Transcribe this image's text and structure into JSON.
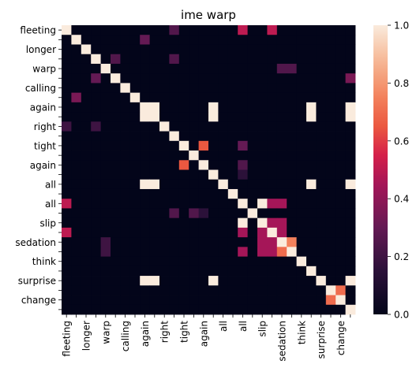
{
  "chart_data": {
    "type": "heatmap",
    "title": "ime warp",
    "xlabel": "",
    "ylabel": "",
    "row_labels": [
      "fleeting",
      "",
      "longer",
      "",
      "warp",
      "",
      "calling",
      "",
      "again",
      "",
      "right",
      "",
      "tight",
      "",
      "again",
      "",
      "all",
      "",
      "all",
      "",
      "slip",
      "",
      "sedation",
      "",
      "think",
      "",
      "surprise",
      "",
      "change",
      ""
    ],
    "col_labels": [
      "fleeting",
      "",
      "longer",
      "",
      "warp",
      "",
      "calling",
      "",
      "again",
      "",
      "right",
      "",
      "tight",
      "",
      "again",
      "",
      "all",
      "",
      "all",
      "",
      "slip",
      "",
      "sedation",
      "",
      "think",
      "",
      "surprise",
      "",
      "change",
      ""
    ],
    "values": [
      [
        1,
        0,
        0,
        0,
        0,
        0,
        0,
        0,
        0,
        0,
        0,
        0.25,
        0,
        0,
        0,
        0,
        0,
        0,
        0.5,
        0,
        0,
        0.5,
        0,
        0,
        0,
        0,
        0,
        0,
        0,
        0
      ],
      [
        0,
        1,
        0,
        0,
        0,
        0,
        0,
        0,
        0.3,
        0,
        0,
        0,
        0,
        0,
        0,
        0,
        0,
        0,
        0,
        0,
        0,
        0,
        0,
        0,
        0,
        0,
        0,
        0,
        0,
        0
      ],
      [
        0,
        0,
        1,
        0,
        0,
        0,
        0,
        0,
        0,
        0,
        0,
        0,
        0,
        0,
        0,
        0,
        0,
        0,
        0,
        0,
        0,
        0,
        0,
        0,
        0,
        0,
        0,
        0,
        0,
        0
      ],
      [
        0,
        0,
        0,
        1,
        0,
        0.25,
        0,
        0,
        0,
        0,
        0,
        0.25,
        0,
        0,
        0,
        0,
        0,
        0,
        0,
        0,
        0,
        0,
        0,
        0,
        0,
        0,
        0,
        0,
        0,
        0
      ],
      [
        0,
        0,
        0,
        0,
        1,
        0,
        0,
        0,
        0,
        0,
        0,
        0,
        0,
        0,
        0,
        0,
        0,
        0,
        0,
        0,
        0,
        0,
        0.25,
        0.25,
        0,
        0,
        0,
        0,
        0,
        0
      ],
      [
        0,
        0,
        0,
        0.3,
        0,
        1,
        0,
        0,
        0,
        0,
        0,
        0,
        0,
        0,
        0,
        0,
        0,
        0,
        0,
        0,
        0,
        0,
        0,
        0,
        0,
        0,
        0,
        0,
        0,
        0.35
      ],
      [
        0,
        0,
        0,
        0,
        0,
        0,
        1,
        0,
        0,
        0,
        0,
        0,
        0,
        0,
        0,
        0,
        0,
        0,
        0,
        0,
        0,
        0,
        0,
        0,
        0,
        0,
        0,
        0,
        0,
        0
      ],
      [
        0,
        0.35,
        0,
        0,
        0,
        0,
        0,
        1,
        0,
        0,
        0,
        0,
        0,
        0,
        0,
        0,
        0,
        0,
        0,
        0,
        0,
        0,
        0,
        0,
        0,
        0,
        0,
        0,
        0,
        0
      ],
      [
        0,
        0,
        0,
        0,
        0,
        0,
        0,
        0,
        1,
        1,
        0,
        0,
        0,
        0,
        0,
        1,
        0,
        0,
        0,
        0,
        0,
        0,
        0,
        0,
        0,
        1,
        0,
        0,
        0,
        1
      ],
      [
        0,
        0,
        0,
        0,
        0,
        0,
        0,
        0,
        1,
        1,
        0,
        0,
        0,
        0,
        0,
        1,
        0,
        0,
        0,
        0,
        0,
        0,
        0,
        0,
        0,
        1,
        0,
        0,
        0,
        1
      ],
      [
        0.2,
        0,
        0,
        0.2,
        0,
        0,
        0,
        0,
        0,
        0,
        1,
        0,
        0,
        0,
        0,
        0,
        0,
        0,
        0,
        0,
        0,
        0,
        0,
        0,
        0,
        0,
        0,
        0,
        0,
        0
      ],
      [
        0,
        0,
        0,
        0,
        0,
        0,
        0,
        0,
        0,
        0,
        0,
        1,
        0,
        0,
        0,
        0,
        0,
        0,
        0,
        0,
        0,
        0,
        0,
        0,
        0,
        0,
        0,
        0,
        0,
        0
      ],
      [
        0,
        0,
        0,
        0,
        0,
        0,
        0,
        0,
        0,
        0,
        0,
        0,
        1,
        0,
        0.65,
        0,
        0,
        0,
        0.3,
        0,
        0,
        0,
        0,
        0,
        0,
        0,
        0,
        0,
        0,
        0
      ],
      [
        0,
        0,
        0,
        0,
        0,
        0,
        0,
        0,
        0,
        0,
        0,
        0,
        0,
        1,
        0,
        0,
        0,
        0,
        0,
        0,
        0,
        0,
        0,
        0,
        0,
        0,
        0,
        0,
        0,
        0
      ],
      [
        0,
        0,
        0,
        0,
        0,
        0,
        0,
        0,
        0,
        0,
        0,
        0,
        0.65,
        0,
        1,
        0,
        0,
        0,
        0.25,
        0,
        0,
        0,
        0,
        0,
        0,
        0,
        0,
        0,
        0,
        0
      ],
      [
        0,
        0,
        0,
        0,
        0,
        0,
        0,
        0,
        0,
        0,
        0,
        0,
        0,
        0,
        0,
        1,
        0,
        0,
        0.15,
        0,
        0,
        0,
        0,
        0,
        0,
        0,
        0,
        0,
        0,
        0
      ],
      [
        0,
        0,
        0,
        0,
        0,
        0,
        0,
        0,
        1,
        1,
        0,
        0,
        0,
        0,
        0,
        0,
        1,
        0,
        0,
        0,
        0,
        0,
        0,
        0,
        0,
        1,
        0,
        0,
        0,
        1
      ],
      [
        0,
        0,
        0,
        0,
        0,
        0,
        0,
        0,
        0,
        0,
        0,
        0,
        0,
        0,
        0,
        0,
        0,
        1,
        0,
        0,
        0,
        0,
        0,
        0,
        0,
        0,
        0,
        0,
        0,
        0
      ],
      [
        0.5,
        0,
        0,
        0,
        0,
        0,
        0,
        0,
        0,
        0,
        0,
        0,
        0,
        0,
        0,
        0,
        0,
        0,
        1,
        0,
        1,
        0.45,
        0.45,
        0,
        0,
        0,
        0,
        0,
        0,
        0
      ],
      [
        0,
        0,
        0,
        0,
        0,
        0,
        0,
        0,
        0,
        0,
        0,
        0.25,
        0,
        0.25,
        0.15,
        0,
        0,
        0,
        0,
        1,
        0,
        0,
        0,
        0,
        0,
        0,
        0,
        0,
        0,
        0
      ],
      [
        0,
        0,
        0,
        0,
        0,
        0,
        0,
        0,
        0,
        0,
        0,
        0,
        0,
        0,
        0,
        0,
        0,
        0,
        1,
        0,
        1,
        0.45,
        0.45,
        0,
        0,
        0,
        0,
        0,
        0,
        0
      ],
      [
        0.5,
        0,
        0,
        0,
        0,
        0,
        0,
        0,
        0,
        0,
        0,
        0,
        0,
        0,
        0,
        0,
        0,
        0,
        0.45,
        0,
        0.45,
        1,
        0.45,
        0,
        0,
        0,
        0,
        0,
        0,
        0
      ],
      [
        0,
        0,
        0,
        0,
        0.2,
        0,
        0,
        0,
        0,
        0,
        0,
        0,
        0,
        0,
        0,
        0,
        0,
        0,
        0,
        0,
        0.45,
        0.45,
        1,
        0.75,
        0,
        0,
        0,
        0,
        0,
        0
      ],
      [
        0,
        0,
        0,
        0,
        0.2,
        0,
        0,
        0,
        0,
        0,
        0,
        0,
        0,
        0,
        0,
        0,
        0,
        0,
        0.45,
        0,
        0.45,
        0.45,
        0.7,
        1,
        0,
        0,
        0,
        0,
        0,
        0
      ],
      [
        0,
        0,
        0,
        0,
        0,
        0,
        0,
        0,
        0,
        0,
        0,
        0,
        0,
        0,
        0,
        0,
        0,
        0,
        0,
        0,
        0,
        0,
        0,
        0,
        1,
        0,
        0,
        0,
        0,
        0
      ],
      [
        0,
        0,
        0,
        0,
        0,
        0,
        0,
        0,
        0,
        0,
        0,
        0,
        0,
        0,
        0,
        0,
        0,
        0,
        0,
        0,
        0,
        0,
        0,
        0,
        0,
        1,
        0,
        0,
        0,
        0
      ],
      [
        0,
        0,
        0,
        0,
        0,
        0,
        0,
        0,
        1,
        1,
        0,
        0,
        0,
        0,
        0,
        1,
        0,
        0,
        0,
        0,
        0,
        0,
        0,
        0,
        0,
        0,
        1,
        0,
        0,
        1
      ],
      [
        0,
        0,
        0,
        0,
        0,
        0,
        0,
        0,
        0,
        0,
        0,
        0,
        0,
        0,
        0,
        0,
        0,
        0,
        0,
        0,
        0,
        0,
        0,
        0,
        0,
        0,
        0,
        1,
        0.7,
        0
      ],
      [
        0,
        0,
        0,
        0,
        0,
        0,
        0,
        0,
        0,
        0,
        0,
        0,
        0,
        0,
        0,
        0,
        0,
        0,
        0,
        0,
        0,
        0,
        0,
        0,
        0,
        0,
        0,
        0.7,
        1,
        0
      ],
      [
        0,
        0,
        0,
        0,
        0,
        0,
        0,
        0,
        0,
        0,
        0,
        0,
        0,
        0,
        0,
        0,
        0,
        0,
        0,
        0,
        0,
        0,
        0,
        0,
        0,
        0,
        0,
        0,
        0,
        1
      ]
    ],
    "vmin": 0,
    "vmax": 1,
    "colorbar_ticks": [
      "0.0",
      "0.2",
      "0.4",
      "0.6",
      "0.8",
      "1.0"
    ],
    "colormap": "rocket",
    "grid": false,
    "legend": "colorbar-right"
  }
}
